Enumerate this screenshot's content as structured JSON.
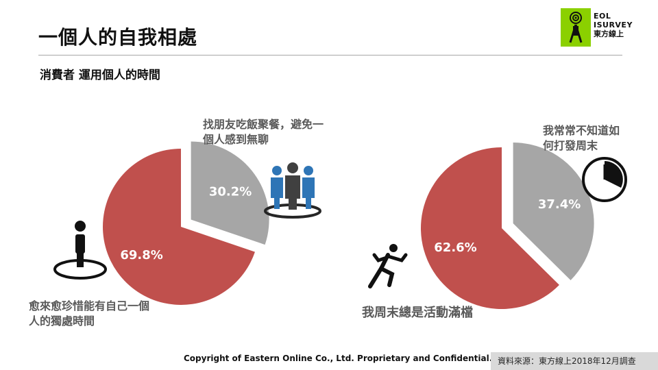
{
  "header": {
    "title": "一個人的自我相處",
    "subtitle": "消費者 運用個人的時間"
  },
  "logo": {
    "line1": "EOL",
    "line2": "ISURVEY",
    "line3": "東方線上"
  },
  "chart_data": [
    {
      "type": "pie",
      "slices": [
        {
          "label": "愈來愈珍惜能有自己一個人的獨處時間",
          "value": 69.8,
          "display": "69.8%",
          "color": "#c0504d"
        },
        {
          "label": "找朋友吃飯聚餐，避免一個人感到無聊",
          "value": 30.2,
          "display": "30.2%",
          "color": "#a6a6a6"
        }
      ]
    },
    {
      "type": "pie",
      "slices": [
        {
          "label": "我周末總是活動滿檔",
          "value": 62.6,
          "display": "62.6%",
          "color": "#c0504d"
        },
        {
          "label": "我常常不知道如何打發周末",
          "value": 37.4,
          "display": "37.4%",
          "color": "#a6a6a6"
        }
      ]
    }
  ],
  "labels": {
    "pie1_gray_line1": "找朋友吃飯聚餐，避免一",
    "pie1_gray_line2": "個人感到無聊",
    "pie1_red_line1": "愈來愈珍惜能有自己一個",
    "pie1_red_line2": "人的獨處時間",
    "pie2_gray_line1": "我常常不知道如",
    "pie2_gray_line2": "何打發周末",
    "pie2_red_line1": "我周末總是活動滿檔"
  },
  "icons": [
    "group-people-icon",
    "single-person-icon",
    "clock-icon",
    "running-person-icon"
  ],
  "footer": {
    "copyright": "Copyright  of Eastern Online  Co., Ltd. Proprietary and Confidential.",
    "source": "資料來源：東方線上2018年12月調查"
  }
}
